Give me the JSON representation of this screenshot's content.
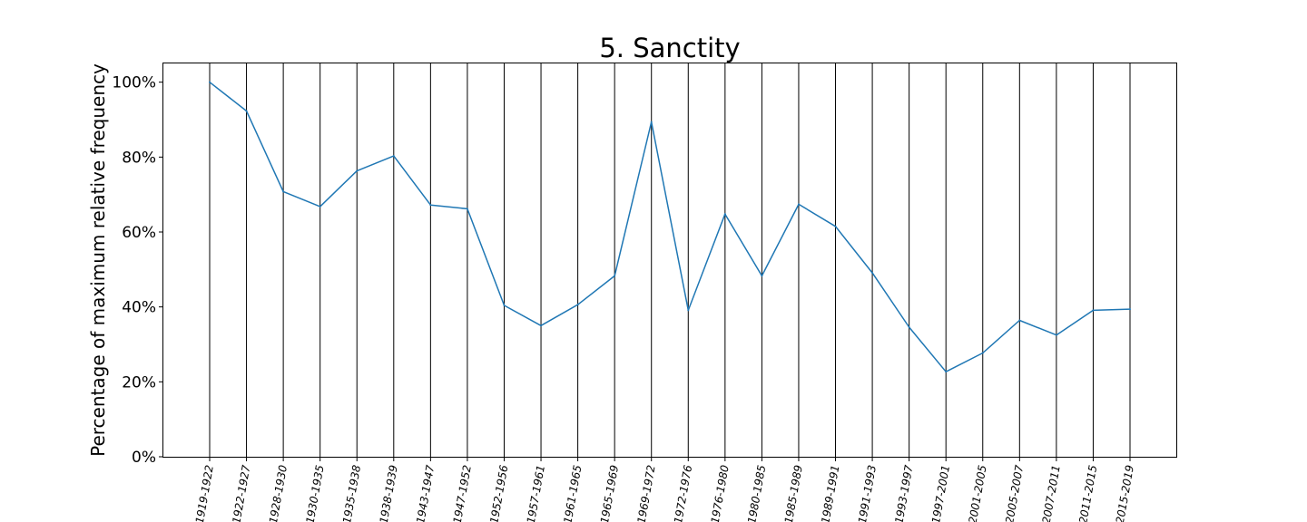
{
  "chart_data": {
    "type": "line",
    "title": "5. Sanctity",
    "xlabel": "",
    "ylabel": "Percentage of maximum relative frequency",
    "categories": [
      "1919-1922",
      "1922-1927",
      "1928-1930",
      "1930-1935",
      "1935-1938",
      "1938-1939",
      "1943-1947",
      "1947-1952",
      "1952-1956",
      "1957-1961",
      "1961-1965",
      "1965-1969",
      "1969-1972",
      "1972-1976",
      "1976-1980",
      "1980-1985",
      "1985-1989",
      "1989-1991",
      "1991-1993",
      "1993-1997",
      "1997-2001",
      "2001-2005",
      "2005-2007",
      "2007-2011",
      "2011-2015",
      "2015-2019"
    ],
    "series": [
      {
        "values": [
          100,
          92.3,
          70.8,
          66.8,
          76.3,
          80.3,
          67.2,
          66.2,
          40.4,
          35.0,
          40.6,
          48.3,
          89.4,
          39.1,
          64.8,
          48.3,
          67.4,
          61.5,
          49.1,
          34.6,
          22.7,
          27.7,
          36.4,
          32.5,
          39.1,
          39.4
        ]
      }
    ],
    "ylim": [
      0,
      105
    ],
    "yticks": [
      0,
      20,
      40,
      60,
      80,
      100
    ],
    "ytick_labels": [
      "0%",
      "20%",
      "40%",
      "60%",
      "80%",
      "100%"
    ],
    "grid": "vertical lines at each category",
    "legend": "none",
    "line_color": "#1f77b4",
    "grid_color": "#000000"
  }
}
